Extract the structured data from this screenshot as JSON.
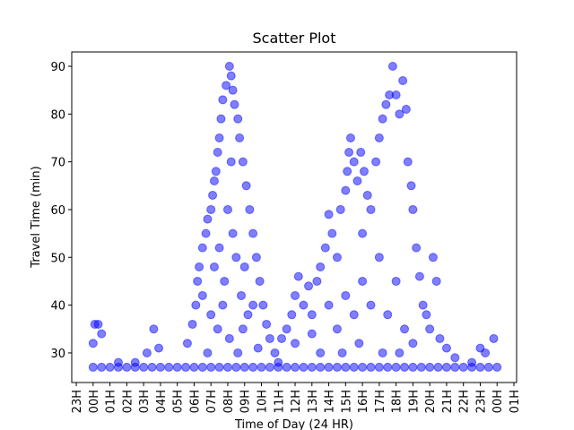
{
  "chart_data": {
    "type": "scatter",
    "title": "Scatter Plot",
    "x_label": "Time of Day (24 HR)",
    "y_label": "Travel Time (min)",
    "color": "#0000ff",
    "x": [
      0,
      0.5,
      1,
      1.5,
      2,
      2.5,
      3,
      3.5,
      4,
      4.5,
      5,
      5.5,
      6,
      6.5,
      7,
      7.5,
      8,
      8.5,
      9,
      9.5,
      10,
      10.5,
      11,
      11.5,
      12,
      12.5,
      13,
      13.5,
      14,
      14.5,
      15,
      15.5,
      16,
      16.5,
      17,
      17.5,
      18,
      18.5,
      19,
      19.5,
      20,
      20.5,
      21,
      21.5,
      22,
      22.5,
      23,
      23.5,
      24,
      0.1,
      0.3,
      0,
      0.5,
      3.6,
      3.2,
      3.9,
      1.5,
      2.5,
      5.6,
      5.9,
      6.1,
      6.2,
      6.3,
      6.5,
      6.7,
      6.8,
      7.0,
      7.1,
      7.2,
      7.3,
      7.4,
      7.5,
      7.6,
      7.7,
      7.9,
      8.1,
      8.2,
      8.3,
      8.4,
      8.6,
      8.7,
      8.9,
      9.1,
      9.3,
      9.5,
      9.7,
      9.9,
      10.1,
      10.3,
      10.5,
      6.5,
      7,
      7.2,
      7.5,
      7.8,
      8,
      8.2,
      8.5,
      8.8,
      9,
      9.2,
      9.5,
      7.4,
      8.1,
      8.6,
      9.8,
      6.8,
      7.7,
      8.3,
      8.9,
      10.8,
      11.2,
      11.5,
      11.8,
      12,
      12.2,
      12.5,
      12.8,
      13,
      13.3,
      13.5,
      13.8,
      14,
      14.2,
      14.5,
      14.7,
      15,
      15.1,
      15.2,
      15.3,
      15.5,
      15.7,
      15.9,
      16.1,
      16.3,
      16.5,
      16.8,
      17,
      17.2,
      17.4,
      17.6,
      17.8,
      18,
      18.2,
      18.4,
      18.6,
      18.7,
      18.9,
      19,
      19.2,
      19.4,
      19.6,
      19.8,
      20,
      20.2,
      20.4,
      20.6,
      21,
      21.5,
      22.5,
      23,
      23.3,
      23.8,
      12,
      13,
      14,
      14.5,
      15,
      15.5,
      16,
      16.5,
      17,
      17.5,
      18,
      18.5,
      19,
      16,
      14.8,
      15.8,
      17.2,
      18.2,
      13.5,
      11
    ],
    "values": [
      27,
      27,
      27,
      27,
      27,
      27,
      27,
      27,
      27,
      27,
      27,
      27,
      27,
      27,
      27,
      27,
      27,
      27,
      27,
      27,
      27,
      27,
      27,
      27,
      27,
      27,
      27,
      27,
      27,
      27,
      27,
      27,
      27,
      27,
      27,
      27,
      27,
      27,
      27,
      27,
      27,
      27,
      27,
      27,
      27,
      27,
      27,
      27,
      27,
      36,
      36,
      32,
      34,
      35,
      30,
      31,
      28,
      28,
      32,
      36,
      40,
      45,
      48,
      52,
      55,
      58,
      60,
      63,
      66,
      68,
      72,
      75,
      79,
      83,
      86,
      90,
      88,
      85,
      82,
      79,
      75,
      70,
      65,
      60,
      55,
      50,
      45,
      40,
      36,
      33,
      42,
      38,
      48,
      52,
      45,
      60,
      70,
      50,
      42,
      48,
      38,
      40,
      35,
      33,
      30,
      31,
      30,
      40,
      55,
      35,
      30,
      33,
      35,
      38,
      42,
      46,
      40,
      44,
      38,
      45,
      48,
      52,
      59,
      55,
      50,
      60,
      64,
      68,
      72,
      75,
      70,
      66,
      72,
      68,
      63,
      60,
      70,
      75,
      79,
      82,
      84,
      90,
      84,
      80,
      87,
      81,
      70,
      65,
      60,
      52,
      46,
      40,
      38,
      35,
      50,
      45,
      33,
      31,
      29,
      28,
      31,
      30,
      33,
      32,
      34,
      40,
      35,
      42,
      38,
      45,
      40,
      50,
      38,
      45,
      35,
      32,
      55,
      30,
      32,
      30,
      30,
      30,
      28
    ],
    "xlim": [
      -1.27,
      25.16
    ],
    "ylim": [
      23.8,
      93
    ],
    "xticks": [
      {
        "value": -1,
        "label": "23H"
      },
      {
        "value": 0,
        "label": "00H"
      },
      {
        "value": 1,
        "label": "01H"
      },
      {
        "value": 2,
        "label": "02H"
      },
      {
        "value": 3,
        "label": "03H"
      },
      {
        "value": 4,
        "label": "04H"
      },
      {
        "value": 5,
        "label": "05H"
      },
      {
        "value": 6,
        "label": "06H"
      },
      {
        "value": 7,
        "label": "07H"
      },
      {
        "value": 8,
        "label": "08H"
      },
      {
        "value": 9,
        "label": "09H"
      },
      {
        "value": 10,
        "label": "10H"
      },
      {
        "value": 11,
        "label": "11H"
      },
      {
        "value": 12,
        "label": "12H"
      },
      {
        "value": 13,
        "label": "13H"
      },
      {
        "value": 14,
        "label": "14H"
      },
      {
        "value": 15,
        "label": "15H"
      },
      {
        "value": 16,
        "label": "16H"
      },
      {
        "value": 17,
        "label": "17H"
      },
      {
        "value": 18,
        "label": "18H"
      },
      {
        "value": 19,
        "label": "19H"
      },
      {
        "value": 20,
        "label": "20H"
      },
      {
        "value": 21,
        "label": "21H"
      },
      {
        "value": 22,
        "label": "22H"
      },
      {
        "value": 23,
        "label": "23H"
      },
      {
        "value": 24,
        "label": "00H"
      },
      {
        "value": 25,
        "label": "01H"
      }
    ],
    "yticks": [
      30,
      40,
      50,
      60,
      70,
      80,
      90
    ]
  }
}
